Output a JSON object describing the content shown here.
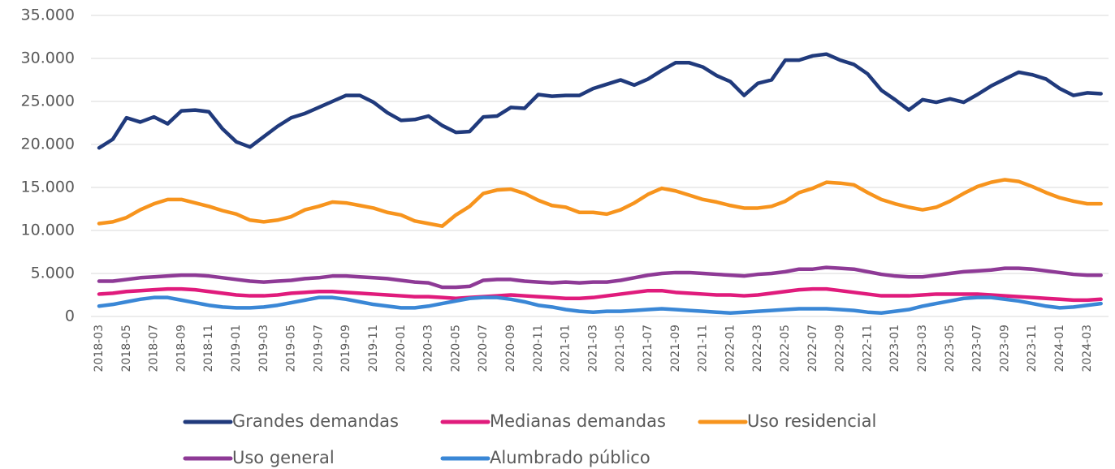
{
  "chart_data": {
    "type": "line",
    "categories": [
      "2018-03",
      null,
      "2018-05",
      null,
      "2018-07",
      null,
      "2018-09",
      null,
      "2018-11",
      null,
      "2019-01",
      null,
      "2019-03",
      null,
      "2019-05",
      null,
      "2019-07",
      null,
      "2019-09",
      null,
      "2019-11",
      null,
      "2020-01",
      null,
      "2020-03",
      null,
      "2020-05",
      null,
      "2020-07",
      null,
      "2020-09",
      null,
      "2020-11",
      null,
      "2021-01",
      null,
      "2021-03",
      null,
      "2021-05",
      null,
      "2021-07",
      null,
      "2021-09",
      null,
      "2021-11",
      null,
      "2022-01",
      null,
      "2022-03",
      null,
      "2022-05",
      null,
      "2022-07",
      null,
      "2022-09",
      null,
      "2022-11",
      null,
      "2023-01",
      null,
      "2023-03",
      null,
      "2023-05",
      null,
      "2023-07",
      null,
      "2023-09",
      null,
      "2023-11",
      null,
      "2024-01",
      null,
      "2024-03",
      null
    ],
    "series": [
      {
        "name": "Grandes demandas",
        "color": "#203a7c",
        "values": [
          19600,
          20600,
          23100,
          22600,
          23200,
          22400,
          23900,
          24000,
          23800,
          21800,
          20300,
          19700,
          20900,
          22100,
          23100,
          23600,
          24300,
          25000,
          25700,
          25700,
          24900,
          23700,
          22800,
          22900,
          23300,
          22200,
          21400,
          21500,
          23200,
          23300,
          24300,
          24200,
          25800,
          25600,
          25700,
          25700,
          26500,
          27000,
          27500,
          26900,
          27600,
          28600,
          29500,
          29500,
          29000,
          28000,
          27300,
          25700,
          27100,
          27500,
          29800,
          29800,
          30300,
          30500,
          29800,
          29300,
          28200,
          26300,
          25200,
          24000,
          25200,
          24900,
          25300,
          24900,
          25800,
          26800,
          27600,
          28400,
          28100,
          27600,
          26500,
          25700,
          26000,
          25900
        ]
      },
      {
        "name": "Medianas demandas",
        "color": "#e01b7c",
        "values": [
          2600,
          2700,
          2900,
          3000,
          3100,
          3200,
          3200,
          3100,
          2900,
          2700,
          2500,
          2400,
          2400,
          2500,
          2700,
          2800,
          2900,
          2900,
          2800,
          2700,
          2600,
          2500,
          2400,
          2300,
          2300,
          2200,
          2100,
          2200,
          2300,
          2400,
          2500,
          2400,
          2300,
          2200,
          2100,
          2100,
          2200,
          2400,
          2600,
          2800,
          3000,
          3000,
          2800,
          2700,
          2600,
          2500,
          2500,
          2400,
          2500,
          2700,
          2900,
          3100,
          3200,
          3200,
          3000,
          2800,
          2600,
          2400,
          2400,
          2400,
          2500,
          2600,
          2600,
          2600,
          2600,
          2500,
          2400,
          2300,
          2200,
          2100,
          2000,
          1900,
          1900,
          2000
        ]
      },
      {
        "name": "Uso residencial",
        "color": "#f7941d",
        "values": [
          10800,
          11000,
          11500,
          12400,
          13100,
          13600,
          13600,
          13200,
          12800,
          12300,
          11900,
          11200,
          11000,
          11200,
          11600,
          12400,
          12800,
          13300,
          13200,
          12900,
          12600,
          12100,
          11800,
          11100,
          10800,
          10500,
          11800,
          12800,
          14300,
          14700,
          14800,
          14300,
          13500,
          12900,
          12700,
          12100,
          12100,
          11900,
          12400,
          13200,
          14200,
          14900,
          14600,
          14100,
          13600,
          13300,
          12900,
          12600,
          12600,
          12800,
          13400,
          14400,
          14900,
          15600,
          15500,
          15300,
          14400,
          13600,
          13100,
          12700,
          12400,
          12700,
          13400,
          14300,
          15100,
          15600,
          15900,
          15700,
          15100,
          14400,
          13800,
          13400,
          13100,
          13100
        ]
      },
      {
        "name": "Uso general",
        "color": "#8e3a96",
        "values": [
          4100,
          4100,
          4300,
          4500,
          4600,
          4700,
          4800,
          4800,
          4700,
          4500,
          4300,
          4100,
          4000,
          4100,
          4200,
          4400,
          4500,
          4700,
          4700,
          4600,
          4500,
          4400,
          4200,
          4000,
          3900,
          3400,
          3400,
          3500,
          4200,
          4300,
          4300,
          4100,
          4000,
          3900,
          4000,
          3900,
          4000,
          4000,
          4200,
          4500,
          4800,
          5000,
          5100,
          5100,
          5000,
          4900,
          4800,
          4700,
          4900,
          5000,
          5200,
          5500,
          5500,
          5700,
          5600,
          5500,
          5200,
          4900,
          4700,
          4600,
          4600,
          4800,
          5000,
          5200,
          5300,
          5400,
          5600,
          5600,
          5500,
          5300,
          5100,
          4900,
          4800,
          4800
        ]
      },
      {
        "name": "Alumbrado público",
        "color": "#3a87d6",
        "values": [
          1200,
          1400,
          1700,
          2000,
          2200,
          2200,
          1900,
          1600,
          1300,
          1100,
          1000,
          1000,
          1100,
          1300,
          1600,
          1900,
          2200,
          2200,
          2000,
          1700,
          1400,
          1200,
          1000,
          1000,
          1200,
          1500,
          1800,
          2100,
          2200,
          2200,
          2000,
          1700,
          1300,
          1100,
          800,
          600,
          500,
          600,
          600,
          700,
          800,
          900,
          800,
          700,
          600,
          500,
          400,
          500,
          600,
          700,
          800,
          900,
          900,
          900,
          800,
          700,
          500,
          400,
          600,
          800,
          1200,
          1500,
          1800,
          2100,
          2200,
          2200,
          2000,
          1800,
          1500,
          1200,
          1000,
          1100,
          1300,
          1500
        ]
      }
    ],
    "ylim": [
      0,
      35000
    ],
    "yticks": [
      0,
      {
        "value": 5000,
        "label": "5.000"
      },
      {
        "value": 10000,
        "label": "10.000"
      },
      {
        "value": 15000,
        "label": "15.000"
      },
      {
        "value": 20000,
        "label": "20.000"
      },
      {
        "value": 25000,
        "label": "25.000"
      },
      {
        "value": 30000,
        "label": "30.000"
      },
      {
        "value": 35000,
        "label": "35.000"
      }
    ],
    "grid": true,
    "legend": "bottom"
  }
}
